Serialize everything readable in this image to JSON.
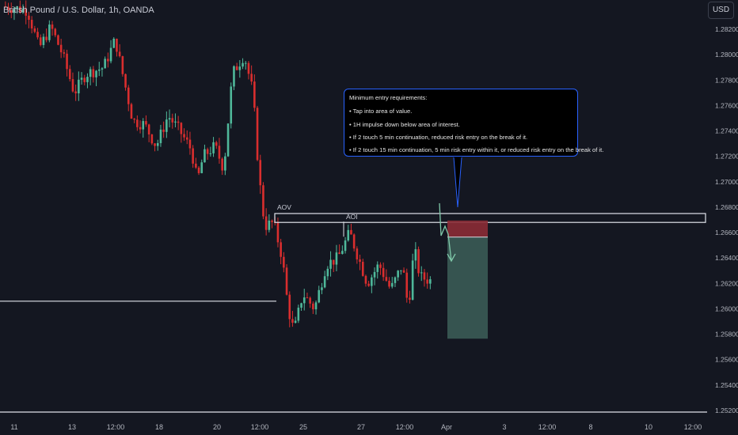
{
  "header": {
    "symbol": "British Pound / U.S. Dollar, 1h, OANDA",
    "currency_button": "USD"
  },
  "annotation": {
    "title": "Minimum entry requirements:",
    "items": [
      "• Tap into area of value.",
      "• 1H impulse down below area of interest.",
      "• If 2 touch 5 min continuation, reduced risk entry on the break of it.",
      "• If 2 touch 15 min continuation, 5 min risk entry within it, or reduced risk entry on the break of it."
    ]
  },
  "colors": {
    "background": "#141721",
    "bull": "#4fb89a",
    "bear": "#d92e2e",
    "level_line": "#e0e3eb",
    "stop_zone": "#8b2b35",
    "target_zone": "#3a5b55",
    "arrow": "#7fc8a9",
    "callout_border": "#2962ff"
  },
  "chart_data": {
    "type": "candlestick",
    "title": "British Pound / U.S. Dollar, 1h, OANDA",
    "y_ticks": [
      "1.28200",
      "1.28000",
      "1.27800",
      "1.27600",
      "1.27400",
      "1.27200",
      "1.27000",
      "1.26800",
      "1.26600",
      "1.26400",
      "1.26200",
      "1.26000",
      "1.25800",
      "1.25600",
      "1.25400",
      "1.25200"
    ],
    "ylim": [
      1.2515,
      1.2845
    ],
    "x_ticks": [
      "11",
      "13",
      "12:00",
      "18",
      "20",
      "12:00",
      "25",
      "27",
      "12:00",
      "Apr",
      "3",
      "12:00",
      "8",
      "10",
      "12:00"
    ],
    "price_path": [
      {
        "t": 0,
        "p": 1.2838
      },
      {
        "t": 8,
        "p": 1.2835
      },
      {
        "t": 12,
        "p": 1.2805
      },
      {
        "t": 16,
        "p": 1.2822
      },
      {
        "t": 20,
        "p": 1.28
      },
      {
        "t": 24,
        "p": 1.277
      },
      {
        "t": 28,
        "p": 1.2785
      },
      {
        "t": 34,
        "p": 1.279
      },
      {
        "t": 38,
        "p": 1.2812
      },
      {
        "t": 40,
        "p": 1.279
      },
      {
        "t": 44,
        "p": 1.2748
      },
      {
        "t": 48,
        "p": 1.2745
      },
      {
        "t": 52,
        "p": 1.2728
      },
      {
        "t": 56,
        "p": 1.2752
      },
      {
        "t": 60,
        "p": 1.274
      },
      {
        "t": 64,
        "p": 1.2725
      },
      {
        "t": 66,
        "p": 1.27
      },
      {
        "t": 68,
        "p": 1.272
      },
      {
        "t": 72,
        "p": 1.2728
      },
      {
        "t": 75,
        "p": 1.271
      },
      {
        "t": 78,
        "p": 1.2785
      },
      {
        "t": 82,
        "p": 1.28
      },
      {
        "t": 85,
        "p": 1.277
      },
      {
        "t": 87,
        "p": 1.2705
      },
      {
        "t": 89,
        "p": 1.2665
      },
      {
        "t": 92,
        "p": 1.2668
      },
      {
        "t": 95,
        "p": 1.264
      },
      {
        "t": 97,
        "p": 1.26
      },
      {
        "t": 99,
        "p": 1.2582
      },
      {
        "t": 102,
        "p": 1.2612
      },
      {
        "t": 106,
        "p": 1.26
      },
      {
        "t": 110,
        "p": 1.2635
      },
      {
        "t": 114,
        "p": 1.264
      },
      {
        "t": 118,
        "p": 1.266
      },
      {
        "t": 121,
        "p": 1.264
      },
      {
        "t": 124,
        "p": 1.262
      },
      {
        "t": 128,
        "p": 1.2635
      },
      {
        "t": 132,
        "p": 1.2615
      },
      {
        "t": 136,
        "p": 1.2635
      },
      {
        "t": 138,
        "p": 1.26
      },
      {
        "t": 140,
        "p": 1.2648
      },
      {
        "t": 142,
        "p": 1.2625
      },
      {
        "t": 146,
        "p": 1.2622
      }
    ],
    "zones": [
      {
        "label": "AOV",
        "price_top": 1.2675,
        "price_bottom": 1.2668
      },
      {
        "label": "AOI",
        "price": 1.2668
      }
    ],
    "support_line": 1.2606,
    "bottom_line": 1.252,
    "short_position": {
      "entry": 1.26565,
      "stop": 1.26695,
      "target": 1.25765
    }
  }
}
